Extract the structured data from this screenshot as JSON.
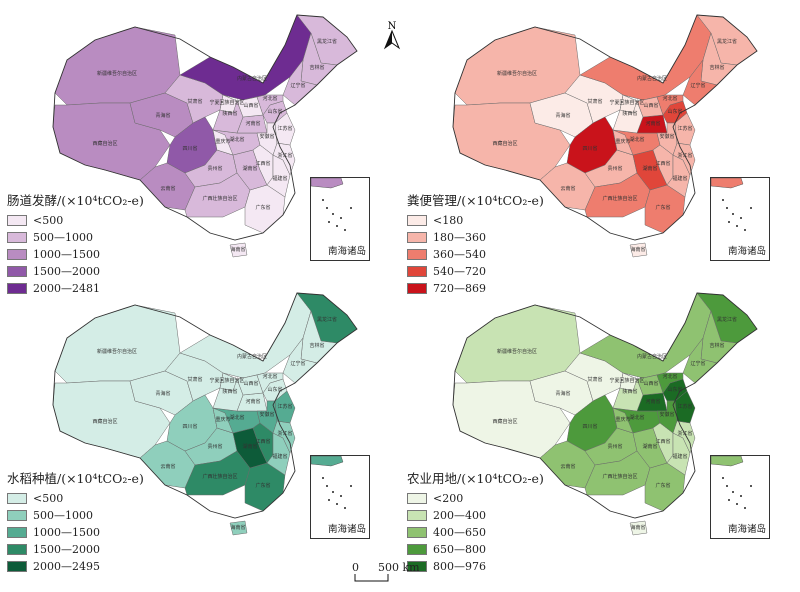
{
  "north_arrow": {
    "label": "N"
  },
  "scale_bar": {
    "zero": "0",
    "distance": "500 km"
  },
  "inset_label": "南海诸岛",
  "province_labels": [
    "新疆维吾尔自治区",
    "西藏自治区",
    "青海省",
    "甘肃省",
    "内蒙古自治区",
    "黑龙江省",
    "吉林省",
    "辽宁省",
    "四川省",
    "云南省",
    "贵州省",
    "广西壮族自治区",
    "广东省",
    "湖南省",
    "湖北省",
    "河南省",
    "山东省",
    "江西省",
    "福建省",
    "浙江省",
    "安徽省",
    "江苏省",
    "陕西省",
    "山西省",
    "河北省",
    "宁夏回族自治区",
    "重庆市",
    "海南省"
  ],
  "panels": [
    {
      "id": "enteric",
      "legend_title": "肠道发酵/(×10⁴tCO₂-e)",
      "classes": [
        {
          "label": "<500",
          "color": "#f4e8f3"
        },
        {
          "label": "500—1000",
          "color": "#d8b9da"
        },
        {
          "label": "1000—1500",
          "color": "#b98cc1"
        },
        {
          "label": "1500—2000",
          "color": "#9059a8"
        },
        {
          "label": "2000—2481",
          "color": "#6e2c91"
        }
      ],
      "province_class": [
        2,
        2,
        2,
        1,
        4,
        1,
        1,
        1,
        3,
        2,
        1,
        1,
        0,
        1,
        1,
        1,
        1,
        0,
        0,
        0,
        0,
        0,
        1,
        0,
        1,
        0,
        0,
        0
      ]
    },
    {
      "id": "manure",
      "legend_title": "粪便管理/(×10⁴tCO₂-e)",
      "classes": [
        {
          "label": "<180",
          "color": "#fcebe7"
        },
        {
          "label": "180—360",
          "color": "#f6b5aa"
        },
        {
          "label": "360—540",
          "color": "#ee7d6e"
        },
        {
          "label": "540—720",
          "color": "#e0463a"
        },
        {
          "label": "720—869",
          "color": "#c9131b"
        }
      ],
      "province_class": [
        1,
        1,
        0,
        0,
        2,
        1,
        1,
        2,
        4,
        1,
        1,
        2,
        2,
        3,
        2,
        4,
        3,
        1,
        1,
        1,
        1,
        1,
        0,
        1,
        2,
        0,
        1,
        0
      ]
    },
    {
      "id": "rice",
      "legend_title": "水稻种植/(×10⁴tCO₂-e)",
      "classes": [
        {
          "label": "<500",
          "color": "#d4ede6"
        },
        {
          "label": "500—1000",
          "color": "#8fcfbc"
        },
        {
          "label": "1000—1500",
          "color": "#55ab92"
        },
        {
          "label": "1500—2000",
          "color": "#2e8a66"
        },
        {
          "label": "2000—2495",
          "color": "#0d5b39"
        }
      ],
      "province_class": [
        0,
        0,
        0,
        0,
        0,
        3,
        0,
        0,
        1,
        1,
        1,
        3,
        3,
        4,
        2,
        0,
        0,
        3,
        1,
        1,
        2,
        2,
        0,
        0,
        0,
        0,
        1,
        1
      ]
    },
    {
      "id": "agland",
      "legend_title": "农业用地/(×10⁴tCO₂-e)",
      "classes": [
        {
          "label": "<200",
          "color": "#eef5e6"
        },
        {
          "label": "200—400",
          "color": "#c8e3b3"
        },
        {
          "label": "400—650",
          "color": "#8fc271"
        },
        {
          "label": "650—800",
          "color": "#4d9a3c"
        },
        {
          "label": "800—976",
          "color": "#1b6b24"
        }
      ],
      "province_class": [
        1,
        0,
        0,
        0,
        2,
        3,
        2,
        2,
        3,
        2,
        2,
        2,
        2,
        2,
        3,
        4,
        4,
        1,
        1,
        1,
        3,
        4,
        1,
        2,
        3,
        0,
        2,
        0
      ]
    }
  ]
}
